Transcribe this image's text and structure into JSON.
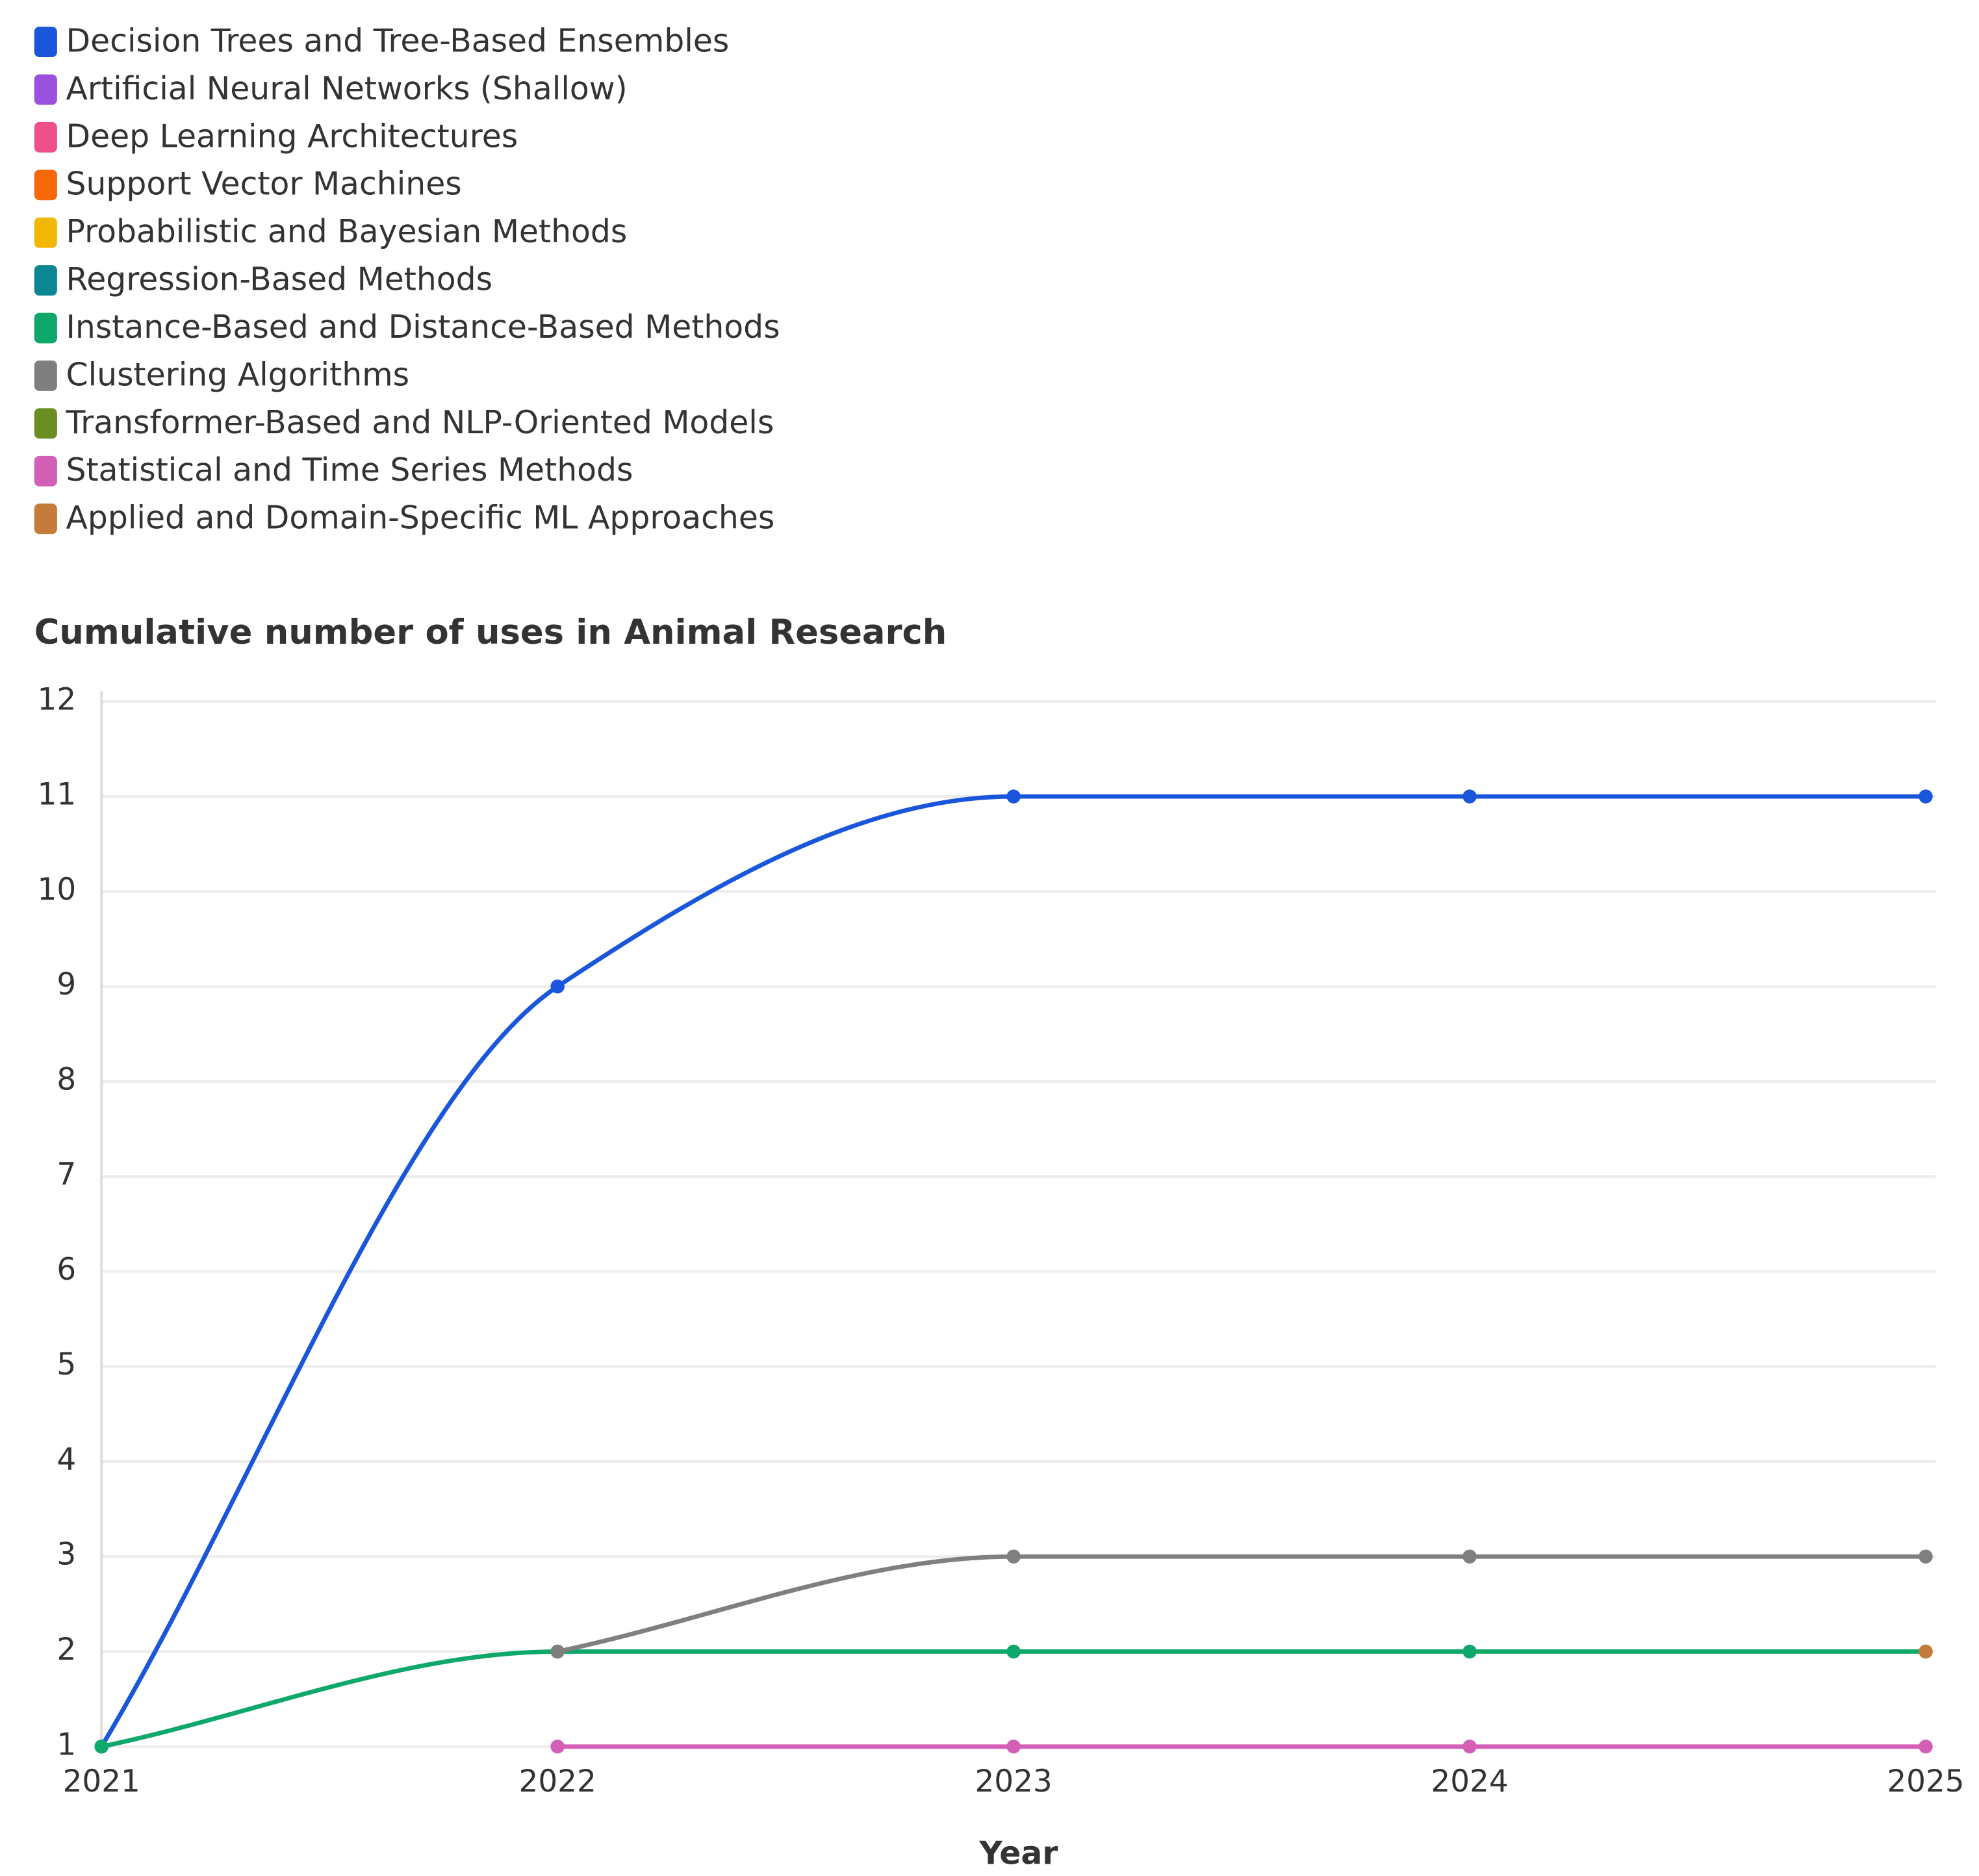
{
  "chart_data": {
    "type": "line",
    "title": "Cumulative number of uses in Animal Research",
    "x_label": "Year",
    "x": [
      2021,
      2022,
      2023,
      2024,
      2025
    ],
    "xlim": [
      2021,
      2025
    ],
    "xticks": [
      2021,
      2022,
      2023,
      2024,
      2025
    ],
    "ylim": [
      1,
      12
    ],
    "yticks": [
      1,
      2,
      3,
      4,
      5,
      6,
      7,
      8,
      9,
      10,
      11,
      12
    ],
    "grid": true,
    "legend": "top-left",
    "smooth": true,
    "series": [
      {
        "name": "Decision Trees and Tree-Based Ensembles",
        "color": "#1a56db",
        "values": [
          1,
          9,
          11,
          11,
          11
        ]
      },
      {
        "name": "Artificial Neural Networks (Shallow)",
        "color": "#9b51e0",
        "values": [
          null,
          null,
          null,
          null,
          null
        ]
      },
      {
        "name": "Deep Learning Architectures",
        "color": "#f0508a",
        "values": [
          null,
          null,
          null,
          null,
          null
        ]
      },
      {
        "name": "Support Vector Machines",
        "color": "#f76707",
        "values": [
          null,
          null,
          null,
          null,
          null
        ]
      },
      {
        "name": "Probabilistic and Bayesian Methods",
        "color": "#f2b705",
        "values": [
          null,
          null,
          null,
          null,
          null
        ]
      },
      {
        "name": "Regression-Based Methods",
        "color": "#0b8793",
        "values": [
          null,
          null,
          null,
          null,
          null
        ]
      },
      {
        "name": "Instance-Based and Distance-Based Methods",
        "color": "#0ea86a",
        "values": [
          1,
          2,
          2,
          2,
          2
        ]
      },
      {
        "name": "Clustering Algorithms",
        "color": "#7f7f7f",
        "values": [
          null,
          2,
          3,
          3,
          3
        ]
      },
      {
        "name": "Transformer-Based and NLP-Oriented Models",
        "color": "#6b8e23",
        "values": [
          null,
          null,
          null,
          null,
          null
        ]
      },
      {
        "name": "Statistical and Time Series Methods",
        "color": "#d35fb7",
        "values": [
          null,
          1,
          1,
          1,
          1
        ]
      },
      {
        "name": "Applied and Domain-Specific ML Approaches",
        "color": "#c57b3a",
        "values": [
          null,
          null,
          null,
          null,
          2
        ]
      }
    ]
  }
}
